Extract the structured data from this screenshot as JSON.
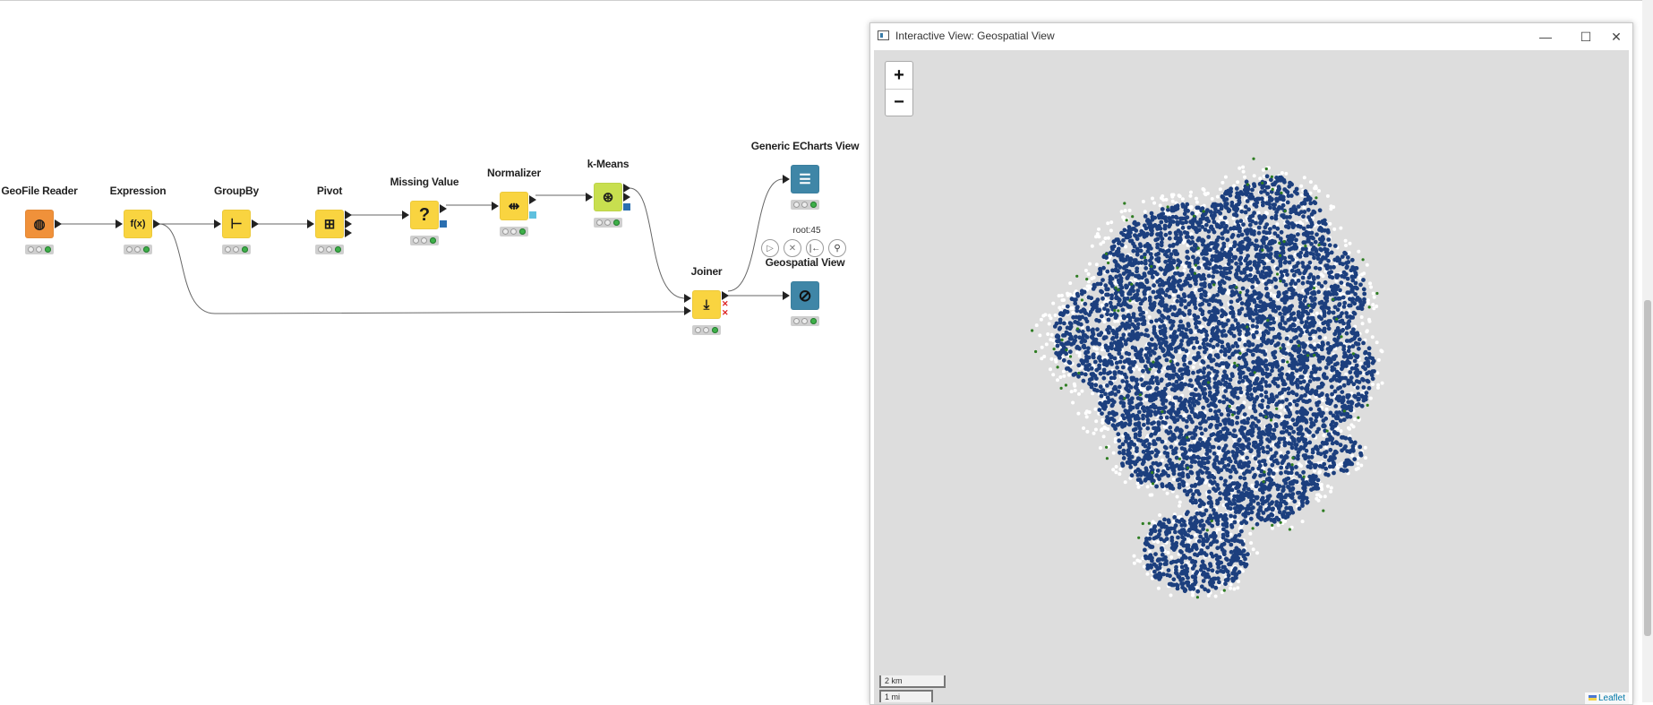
{
  "workflow": {
    "nodes": [
      {
        "id": "geofile",
        "label": "GeoFile Reader",
        "color": "#f0913a",
        "glyph": "◍"
      },
      {
        "id": "expression",
        "label": "Expression",
        "color": "#f9d440",
        "glyph": "f(x)"
      },
      {
        "id": "groupby",
        "label": "GroupBy",
        "color": "#f9d440",
        "glyph": "⊢"
      },
      {
        "id": "pivot",
        "label": "Pivot",
        "color": "#f9d440",
        "glyph": "⊞"
      },
      {
        "id": "missing",
        "label": "Missing Value",
        "color": "#f9d440",
        "glyph": "?"
      },
      {
        "id": "normalizer",
        "label": "Normalizer",
        "color": "#f9d440",
        "glyph": "⇹"
      },
      {
        "id": "kmeans",
        "label": "k-Means",
        "color": "#c8df4f",
        "glyph": "⊛"
      },
      {
        "id": "joiner",
        "label": "Joiner",
        "color": "#f9d440",
        "glyph": "⤓"
      },
      {
        "id": "echarts",
        "label": "Generic ECharts View",
        "color": "#3f86a7",
        "glyph": "☰"
      },
      {
        "id": "geoview",
        "label": "Geospatial View",
        "color": "#3f86a7",
        "glyph": "⊘"
      }
    ],
    "selected_node_id": "root:45"
  },
  "view_window": {
    "title": "Interactive View: Geospatial View",
    "zoom_in": "+",
    "zoom_out": "−",
    "scale_km": "2 km",
    "scale_mi": "1 mi",
    "attribution": "Leaflet",
    "colors": {
      "cluster_main": "#1c3f7e",
      "cluster_green": "#2e7d22",
      "cluster_white": "#ffffff",
      "map_bg": "#dddddd"
    }
  }
}
